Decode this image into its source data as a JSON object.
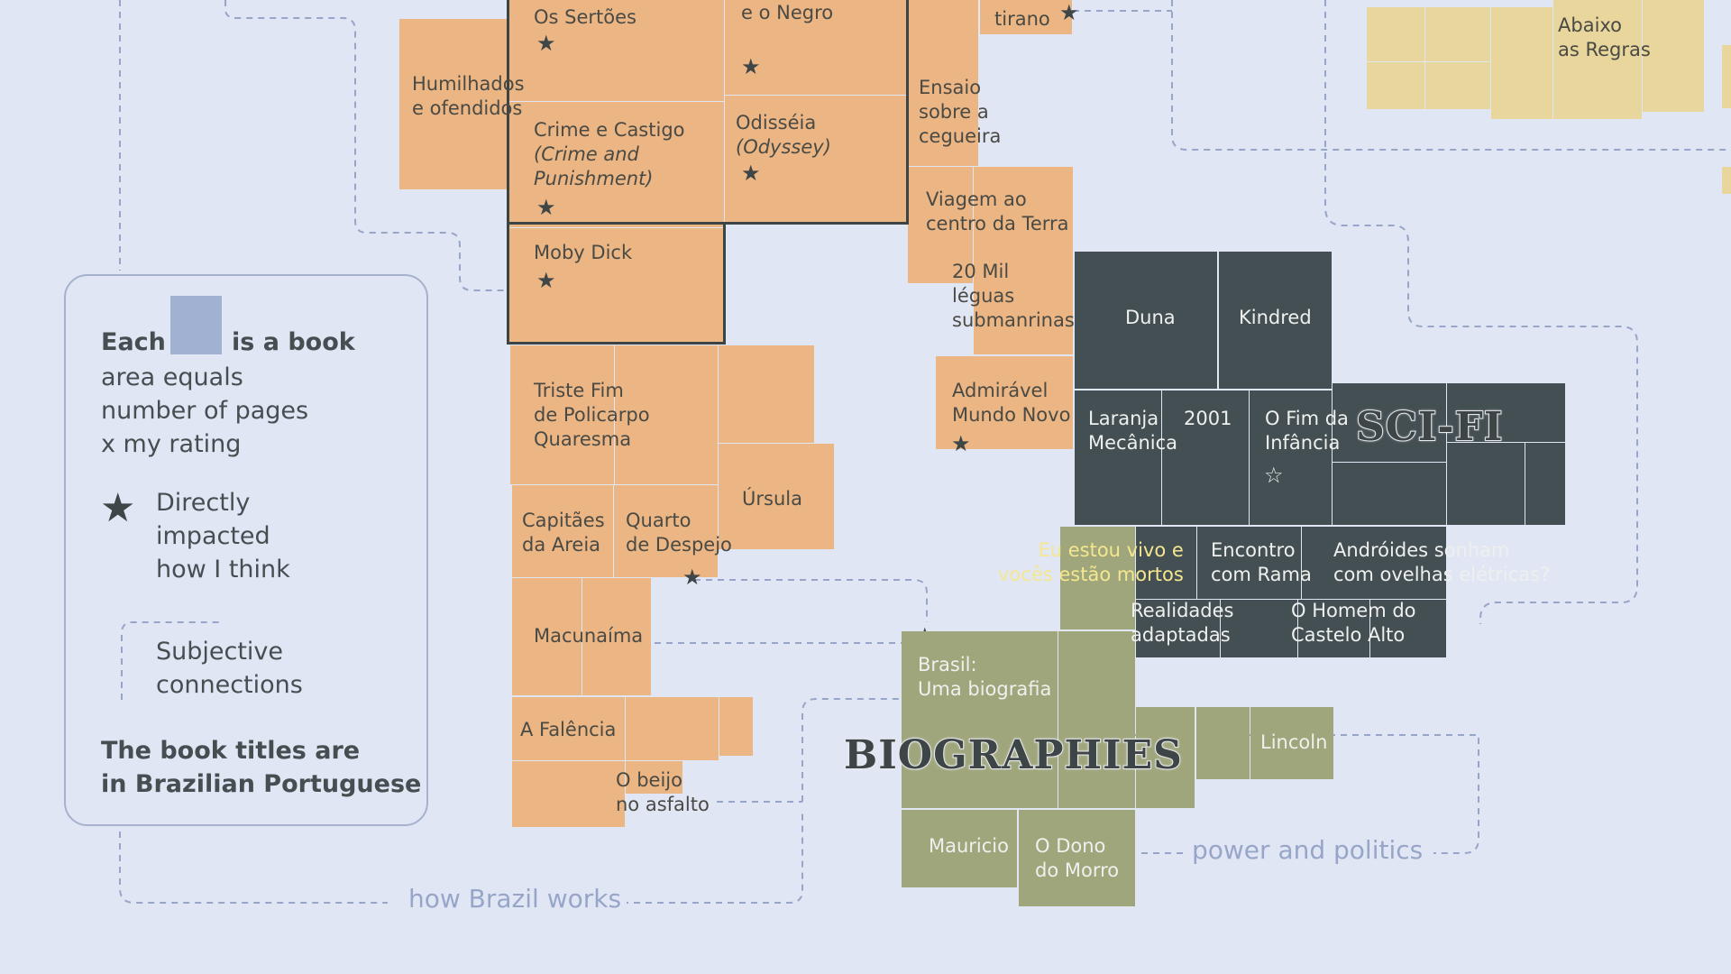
{
  "legend": {
    "line1_a": "Each",
    "line1_b": "is a book",
    "line2": "area equals\nnumber of pages\nx my rating",
    "star_text": "Directly\nimpacted\nhow I think",
    "connections_text": "Subjective\nconnections",
    "note": "The book titles are\nin Brazilian Portuguese"
  },
  "categories": {
    "scifi": "SCI-FI",
    "biographies": "BIOGRAPHIES",
    "how_brazil_works": "how Brazil works",
    "power_and_politics": "power and politics"
  },
  "books": {
    "os_sertoes": "Os Sertões",
    "e_o_negro": "e o Negro",
    "tirano": "tirano",
    "humilhados": "Humilhados\ne ofendidos",
    "crime_castigo": "Crime e Castigo",
    "crime_castigo_en": "(Crime and\nPunishment)",
    "odisseia": "Odisséia",
    "odisseia_en": "(Odyssey)",
    "ensaio": "Ensaio\nsobre a\ncegueira",
    "moby_dick": "Moby Dick",
    "viagem": "Viagem ao\ncentro da Terra",
    "vinte_mil": "20 Mil\nléguas\nsubmanrinas",
    "admiravel": "Admirável\nMundo Novo",
    "triste_fim": "Triste Fim\nde Policarpo\nQuaresma",
    "ursula": "Úrsula",
    "capitaes": "Capitães\nda Areia",
    "quarto": "Quarto\nde Despejo",
    "macunaima": "Macunaíma",
    "a_falencia": "A Falência",
    "o_beijo": "O beijo\nno asfalto",
    "duna": "Duna",
    "kindred": "Kindred",
    "laranja": "Laranja\nMecânica",
    "dois_mil_um": "2001",
    "fim_infancia": "O Fim da\nInfância",
    "eu_estou_vivo": "Eu estou vivo e\nvocês estão mortos",
    "encontro": "Encontro\ncom Rama",
    "androides": "Andróides sonham\ncom ovelhas elétricas?",
    "realidades": "Realidades\nadaptadas",
    "homem_castelo": "O Homem do\nCastelo Alto",
    "brasil_bio": "Brasil:\nUma biografia",
    "lincoln": "Lincoln",
    "mauricio": "Mauricio",
    "o_dono": "O Dono\ndo Morro",
    "abaixo": "Abaixo\nas Regras"
  },
  "colors": {
    "background": "#e1e6f4",
    "classics_orange": "#ebb584",
    "scifi_dark": "#444f53",
    "biographies_green": "#a0a67c",
    "rules_yellow": "#e8d69c",
    "legend_square": "#a1b1d2",
    "connection_line": "#97a6c8"
  },
  "icons": {
    "star": "star-icon",
    "star_outline": "star-outline-icon"
  }
}
